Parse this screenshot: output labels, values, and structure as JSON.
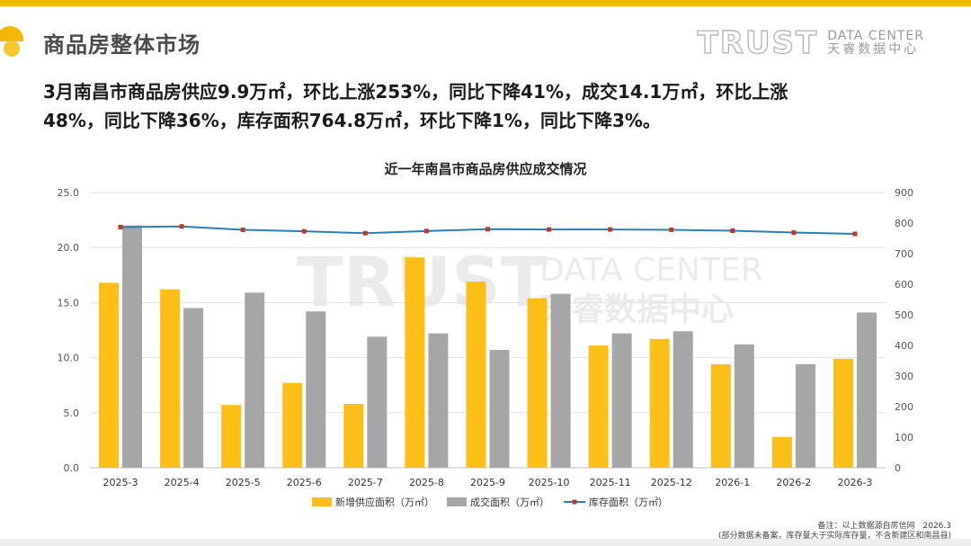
{
  "header": {
    "title": "商品房整体市场",
    "brand_main": "TRUST",
    "brand_en": "DATA CENTER",
    "brand_cn": "天睿数据中心"
  },
  "summary": {
    "line1": "3月南昌市商品房供应9.9万㎡，环比上涨253%，同比下降41%，成交14.1万㎡，环比上涨",
    "line2": "48%，同比下降36%，库存面积764.8万㎡，环比下降1%，同比下降3%。"
  },
  "colors": {
    "accent": "#f5b800",
    "supply_bar": "#fbbf17",
    "deal_bar": "#a6a6a6",
    "inventory_line": "#2b7fb5",
    "inventory_marker": "#c0392b"
  },
  "chart_data": {
    "type": "bar",
    "title": "近一年南昌市商品房供应成交情况",
    "categories": [
      "2025-3",
      "2025-4",
      "2025-5",
      "2025-6",
      "2025-7",
      "2025-8",
      "2025-9",
      "2025-10",
      "2025-11",
      "2025-12",
      "2026-1",
      "2026-2",
      "2026-3"
    ],
    "series": [
      {
        "name": "新增供应面积（万㎡）",
        "type": "bar",
        "axis": "left",
        "values": [
          16.8,
          16.2,
          5.7,
          7.7,
          5.8,
          19.1,
          16.9,
          15.4,
          11.1,
          11.7,
          9.4,
          2.8,
          9.9
        ]
      },
      {
        "name": "成交面积（万㎡）",
        "type": "bar",
        "axis": "left",
        "values": [
          22.0,
          14.5,
          15.9,
          14.2,
          11.9,
          12.2,
          10.7,
          15.8,
          12.2,
          12.4,
          11.2,
          9.4,
          14.1
        ]
      },
      {
        "name": "库存面积（万㎡）",
        "type": "line",
        "axis": "right",
        "values": [
          787,
          789,
          778,
          773,
          767,
          774,
          780,
          779,
          779,
          778,
          775,
          769,
          764.8
        ]
      }
    ],
    "y_left": {
      "min": 0,
      "max": 25,
      "ticks": [
        "0.0",
        "5.0",
        "10.0",
        "15.0",
        "20.0",
        "25.0"
      ]
    },
    "y_right": {
      "min": 0,
      "max": 900,
      "ticks": [
        "0",
        "100",
        "200",
        "300",
        "400",
        "500",
        "600",
        "700",
        "800",
        "900"
      ]
    },
    "legend_position": "bottom"
  },
  "footnote": {
    "line1": "备注：以上数据源自房信网　2026.3",
    "line2": "(部分数据未备案，库存量大于实际库存量，不含新建区和南昌县)"
  },
  "watermark": {
    "main": "TRUST",
    "en": "DATA CENTER",
    "cn": "天睿数据中心"
  }
}
